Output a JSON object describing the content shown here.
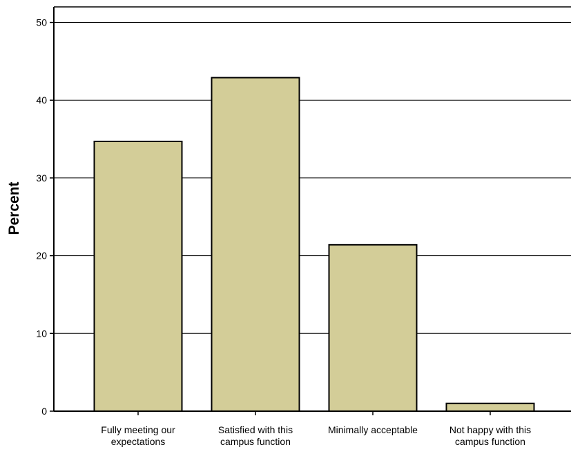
{
  "chart_data": {
    "type": "bar",
    "title": "",
    "xlabel": "",
    "ylabel": "Percent",
    "categories": [
      [
        "Fully meeting our",
        "expectations"
      ],
      [
        "Satisfied with this",
        "campus function"
      ],
      [
        "Minimally acceptable"
      ],
      [
        "Not happy with this",
        "campus function"
      ]
    ],
    "values": [
      34.7,
      42.9,
      21.4,
      1.0
    ],
    "ylim": [
      0,
      52
    ],
    "yticks": [
      "0",
      "10",
      "20",
      "30",
      "40",
      "50"
    ],
    "grid": true,
    "legend": "none",
    "colors": {
      "bar_fill": "#d3cd98",
      "bar_stroke": "#000000",
      "grid": "#000000",
      "axis": "#000000",
      "background": "#ffffff"
    }
  }
}
